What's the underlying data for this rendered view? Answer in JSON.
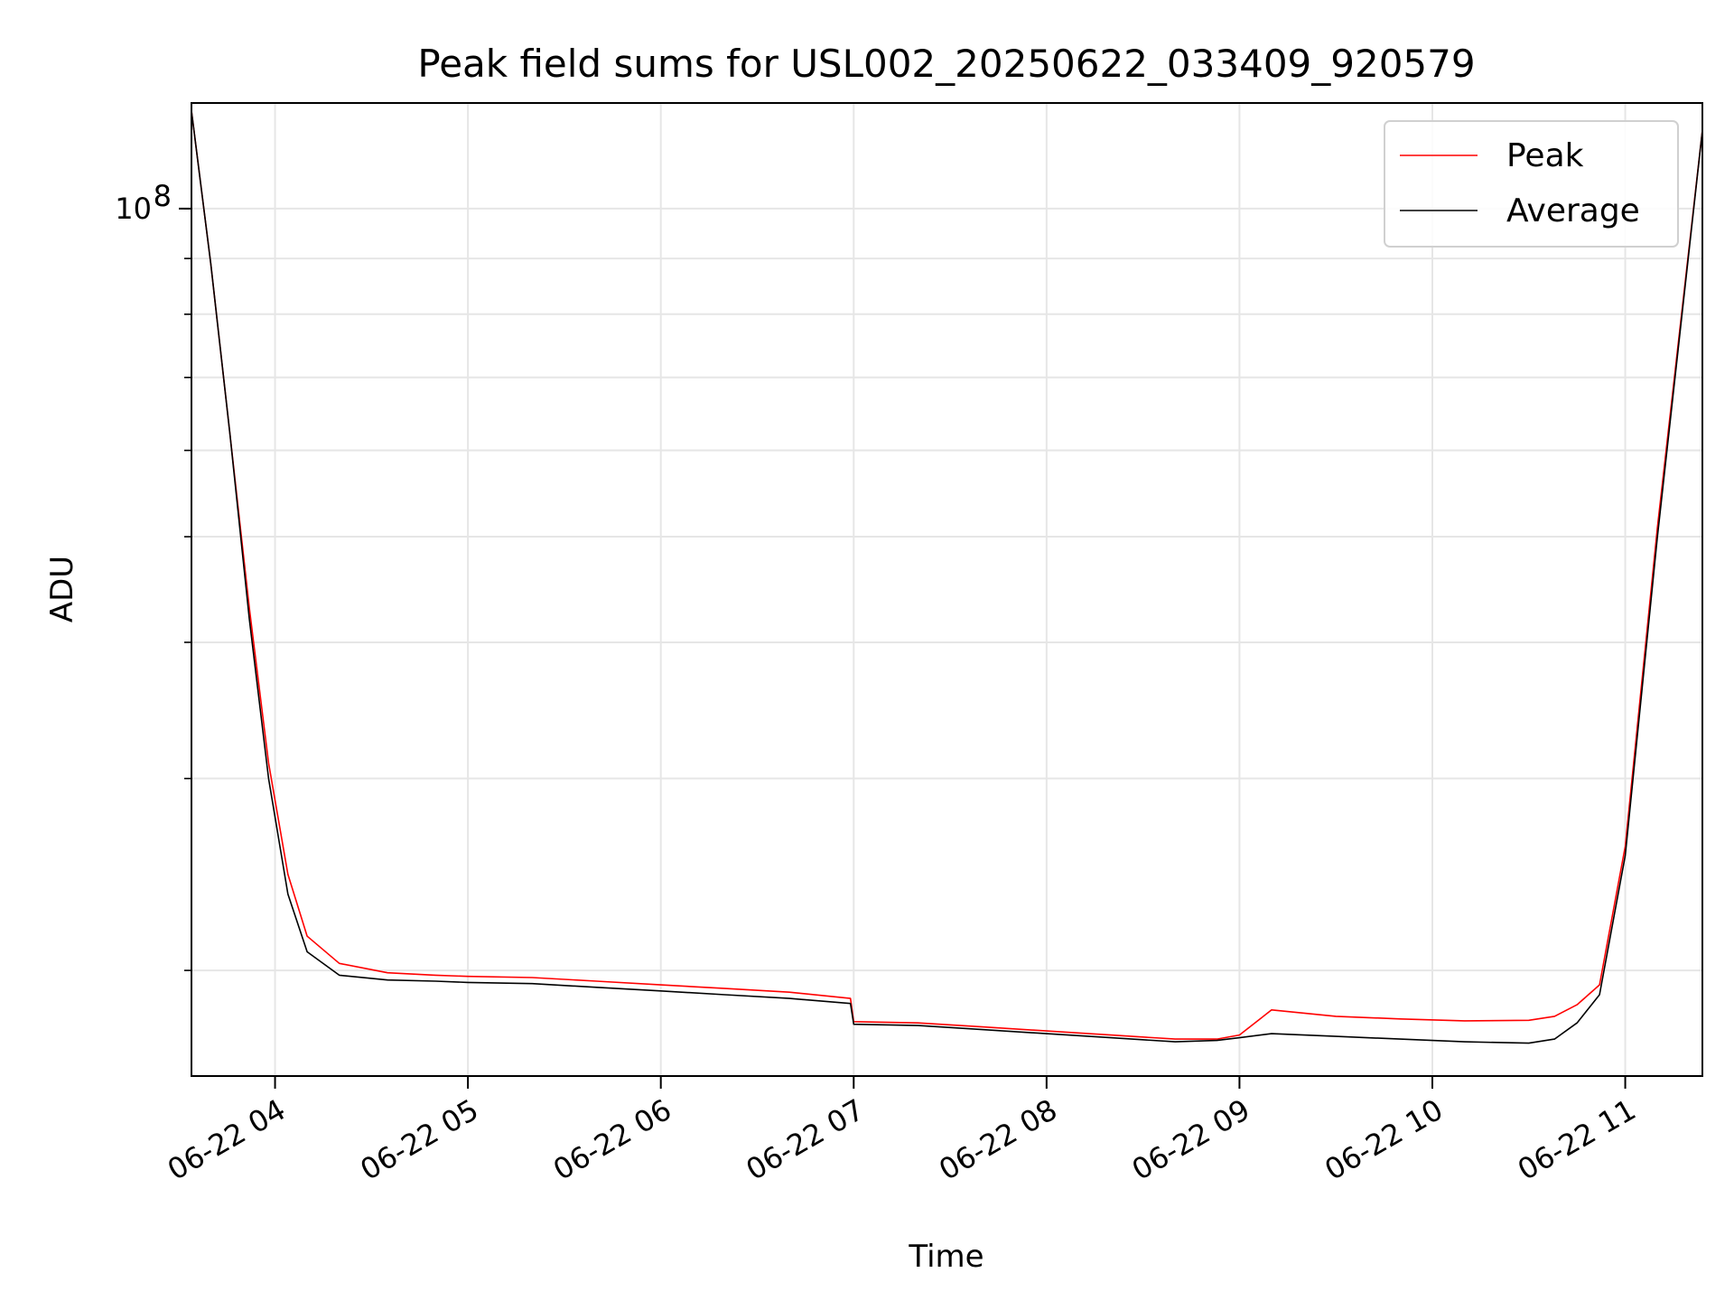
{
  "chart_data": {
    "type": "line",
    "title": "Peak field sums for USL002_20250622_033409_920579",
    "xlabel": "Time",
    "ylabel": "ADU",
    "yscale": "log",
    "grid": true,
    "legend_position": "top-right",
    "x_range": [
      "06-22 03:34",
      "06-22 11:24"
    ],
    "ylim": [
      16000000,
      125000000
    ],
    "x_tick_labels": [
      "06-22 04",
      "06-22 05",
      "06-22 06",
      "06-22 07",
      "06-22 08",
      "06-22 09",
      "06-22 10",
      "06-22 11"
    ],
    "x_tick_values": [
      "06-22 04:00",
      "06-22 05:00",
      "06-22 06:00",
      "06-22 07:00",
      "06-22 08:00",
      "06-22 09:00",
      "06-22 10:00",
      "06-22 11:00"
    ],
    "y_tick_labels": [
      {
        "base": "10",
        "exp": "8"
      }
    ],
    "y_tick_values": [
      100000000
    ],
    "series": [
      {
        "name": "Peak",
        "color": "#ff0000",
        "x": [
          "06-22 03:34",
          "06-22 03:40",
          "06-22 03:46",
          "06-22 03:52",
          "06-22 03:58",
          "06-22 04:04",
          "06-22 04:10",
          "06-22 04:20",
          "06-22 04:35",
          "06-22 04:50",
          "06-22 05:00",
          "06-22 05:20",
          "06-22 05:40",
          "06-22 06:00",
          "06-22 06:20",
          "06-22 06:40",
          "06-22 06:59",
          "06-22 07:00",
          "06-22 07:20",
          "06-22 07:40",
          "06-22 08:00",
          "06-22 08:20",
          "06-22 08:40",
          "06-22 08:53",
          "06-22 09:00",
          "06-22 09:10",
          "06-22 09:30",
          "06-22 09:50",
          "06-22 10:10",
          "06-22 10:30",
          "06-22 10:38",
          "06-22 10:45",
          "06-22 10:52",
          "06-22 11:00",
          "06-22 11:10",
          "06-22 11:24"
        ],
        "y": [
          123000000,
          89000000,
          62000000,
          43000000,
          31000000,
          24500000,
          21500000,
          20300000,
          19900000,
          19800000,
          19750000,
          19700000,
          19550000,
          19400000,
          19250000,
          19100000,
          18850000,
          17950000,
          17900000,
          17750000,
          17600000,
          17450000,
          17300000,
          17300000,
          17450000,
          18400000,
          18150000,
          18050000,
          17980000,
          18000000,
          18150000,
          18600000,
          19400000,
          26000000,
          51000000,
          118000000
        ]
      },
      {
        "name": "Average",
        "color": "#000000",
        "x": [
          "06-22 03:34",
          "06-22 03:40",
          "06-22 03:46",
          "06-22 03:52",
          "06-22 03:58",
          "06-22 04:04",
          "06-22 04:10",
          "06-22 04:20",
          "06-22 04:35",
          "06-22 04:50",
          "06-22 05:00",
          "06-22 05:20",
          "06-22 05:40",
          "06-22 06:00",
          "06-22 06:20",
          "06-22 06:40",
          "06-22 06:59",
          "06-22 07:00",
          "06-22 07:20",
          "06-22 07:40",
          "06-22 08:00",
          "06-22 08:20",
          "06-22 08:40",
          "06-22 08:53",
          "06-22 09:00",
          "06-22 09:10",
          "06-22 09:30",
          "06-22 09:50",
          "06-22 10:10",
          "06-22 10:30",
          "06-22 10:38",
          "06-22 10:45",
          "06-22 10:52",
          "06-22 11:00",
          "06-22 11:10",
          "06-22 11:24"
        ],
        "y": [
          123000000,
          89000000,
          62000000,
          42000000,
          30000000,
          23500000,
          20800000,
          19800000,
          19600000,
          19550000,
          19500000,
          19450000,
          19300000,
          19150000,
          19000000,
          18850000,
          18650000,
          17850000,
          17800000,
          17650000,
          17500000,
          17350000,
          17200000,
          17250000,
          17350000,
          17500000,
          17400000,
          17300000,
          17200000,
          17150000,
          17300000,
          17900000,
          19000000,
          25500000,
          50000000,
          118000000
        ]
      }
    ]
  }
}
